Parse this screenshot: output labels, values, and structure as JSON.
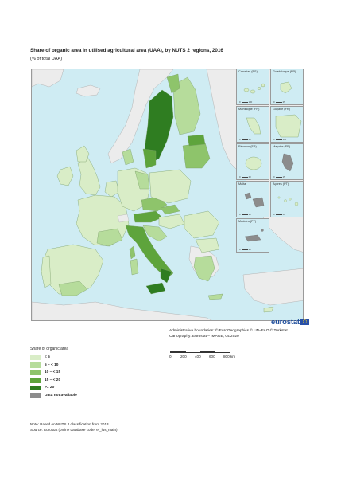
{
  "title": "Share of organic area in utilised agricultural area (UAA), by NUTS 2 regions, 2016",
  "subtitle": "(% of total UAA)",
  "colors": {
    "sea": "#cfecf3",
    "non_eu_land": "#ececec",
    "class_1": "#d9edc7",
    "class_2": "#b6dc9b",
    "class_3": "#8ec46b",
    "class_4": "#5ea43c",
    "class_5": "#2f7d21",
    "no_data": "#8c8c8c",
    "border": "#7b9f6a",
    "brand": "#1f4e9c"
  },
  "insets": [
    {
      "name": "Canarias (ES)",
      "scale_left": "0",
      "scale_right": "100"
    },
    {
      "name": "Guadeloupe (FR)",
      "scale_left": "0",
      "scale_right": "25"
    },
    {
      "name": "Martinique (FR)",
      "scale_left": "0",
      "scale_right": "20"
    },
    {
      "name": "Guyane (FR)",
      "scale_left": "0",
      "scale_right": "100"
    },
    {
      "name": "Réunion (FR)",
      "scale_left": "0",
      "scale_right": "20"
    },
    {
      "name": "Mayotte (FR)",
      "scale_left": "0",
      "scale_right": "15"
    },
    {
      "name": "Malta",
      "scale_left": "0",
      "scale_right": "10"
    },
    {
      "name": "Açores (PT)",
      "scale_left": "0",
      "scale_right": "50"
    },
    {
      "name": "Madeira (PT)",
      "scale_left": "0",
      "scale_right": "20"
    }
  ],
  "brand": "eurostat",
  "attribution": {
    "boundaries": "Administrative boundaries: © EuroGeographics © UN–FAO © Turkstat",
    "cartography": "Cartography: Eurostat – IMAGE, 04/2020"
  },
  "scale_bar": {
    "ticks": [
      "0",
      "200",
      "400",
      "600",
      "800 km"
    ]
  },
  "legend": {
    "title": "Share of organic area",
    "items": [
      {
        "label": "< 5",
        "color_key": "class_1"
      },
      {
        "label": "5 – < 10",
        "color_key": "class_2"
      },
      {
        "label": "10 – < 15",
        "color_key": "class_3"
      },
      {
        "label": "15 – < 20",
        "color_key": "class_4"
      },
      {
        "label": ">= 20",
        "color_key": "class_5"
      },
      {
        "label": "Data not available",
        "color_key": "no_data"
      }
    ]
  },
  "note": "Note: Based on NUTS 2 classification from 2013.",
  "source": "Source: Eurostat (online database code: ef_lus_main)"
}
